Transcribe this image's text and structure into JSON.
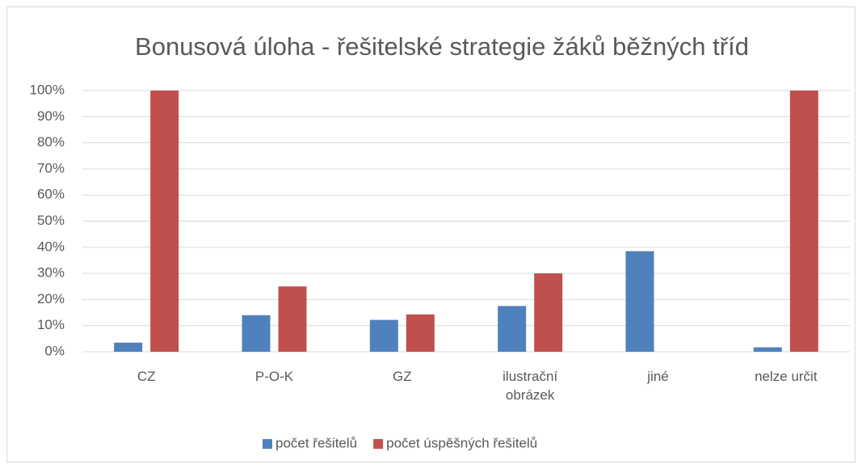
{
  "chart_data": {
    "type": "bar",
    "title": "Bonusová úloha - řešitelské strategie žáků běžných tříd",
    "categories": [
      "CZ",
      "P-O-K",
      "GZ",
      "ilustrační obrázek",
      "jiné",
      "nelze určit"
    ],
    "series": [
      {
        "name": "počet řešitelů",
        "color": "#4f81bd",
        "values": [
          3.5,
          14,
          12.2,
          17.5,
          38.5,
          1.7
        ]
      },
      {
        "name": "počet úspěšných řešitelů",
        "color": "#c0504d",
        "values": [
          100,
          25,
          14.3,
          30,
          0,
          100
        ]
      }
    ],
    "ylim": [
      0,
      100
    ],
    "yticks": [
      {
        "value": 0,
        "label": "0%"
      },
      {
        "value": 10,
        "label": "10%"
      },
      {
        "value": 20,
        "label": "20%"
      },
      {
        "value": 30,
        "label": "30%"
      },
      {
        "value": 40,
        "label": "40%"
      },
      {
        "value": 50,
        "label": "50%"
      },
      {
        "value": 60,
        "label": "60%"
      },
      {
        "value": 70,
        "label": "70%"
      },
      {
        "value": 80,
        "label": "80%"
      },
      {
        "value": 90,
        "label": "90%"
      },
      {
        "value": 100,
        "label": "100%"
      }
    ],
    "grid": true,
    "legend": "bottom"
  }
}
